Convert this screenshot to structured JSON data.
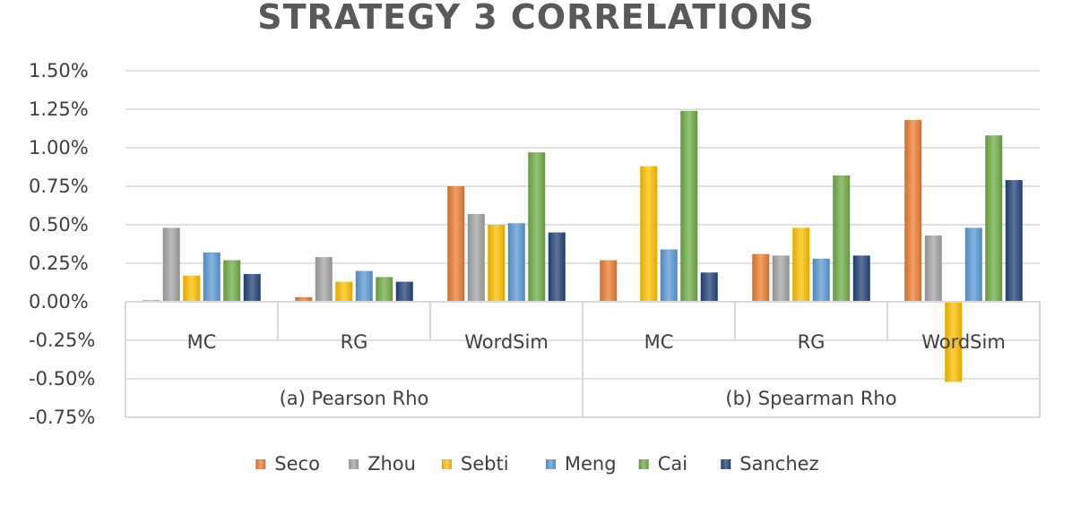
{
  "chart_data": {
    "type": "bar",
    "title": "STRATEGY 3 CORRELATIONS",
    "xlabel": "",
    "ylabel": "",
    "ylim": [
      -0.75,
      1.5
    ],
    "y_ticks": [
      "1.50%",
      "1.25%",
      "1.00%",
      "0.75%",
      "0.50%",
      "0.25%",
      "0.00%",
      "-0.25%",
      "-0.50%",
      "-0.75%"
    ],
    "y_tick_values": [
      1.5,
      1.25,
      1.0,
      0.75,
      0.5,
      0.25,
      0.0,
      -0.25,
      -0.5,
      -0.75
    ],
    "grid": true,
    "legend_position": "bottom",
    "groups": [
      {
        "label": "(a) Pearson Rho",
        "categories": [
          "MC",
          "RG",
          "WordSim"
        ]
      },
      {
        "label": "(b) Spearman Rho",
        "categories": [
          "MC",
          "RG",
          "WordSim"
        ]
      }
    ],
    "categories": [
      "MC",
      "RG",
      "WordSim",
      "MC",
      "RG",
      "WordSim"
    ],
    "series": [
      {
        "name": "Seco",
        "color": "#ED7D31",
        "values": [
          0.01,
          0.03,
          0.75,
          0.27,
          0.31,
          1.18
        ]
      },
      {
        "name": "Zhou",
        "color": "#A5A5A5",
        "values": [
          0.48,
          0.29,
          0.57,
          0.0,
          0.3,
          0.43
        ]
      },
      {
        "name": "Sebti",
        "color": "#FFC000",
        "values": [
          0.17,
          0.13,
          0.5,
          0.88,
          0.48,
          -0.52
        ]
      },
      {
        "name": "Meng",
        "color": "#5B9BD5",
        "values": [
          0.32,
          0.2,
          0.51,
          0.34,
          0.28,
          0.48
        ]
      },
      {
        "name": "Cai",
        "color": "#70AD47",
        "values": [
          0.27,
          0.16,
          0.97,
          1.24,
          0.82,
          1.08
        ]
      },
      {
        "name": "Sanchez",
        "color": "#264478",
        "values": [
          0.18,
          0.13,
          0.45,
          0.19,
          0.3,
          0.79
        ]
      }
    ]
  }
}
